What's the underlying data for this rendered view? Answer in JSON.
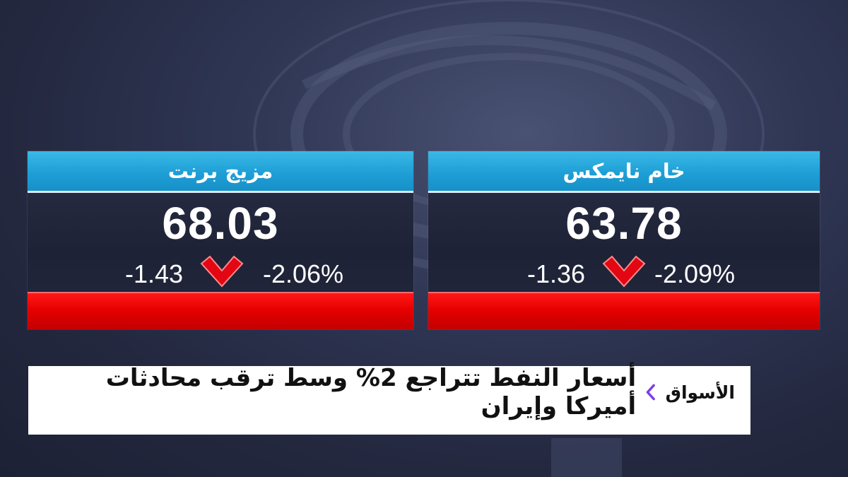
{
  "colors": {
    "background": "#23283f",
    "header_blue": "#1e9fd6",
    "down_red": "#e60000",
    "accent_purple": "#7b3fe4"
  },
  "cards": [
    {
      "title": "مزيج برنت",
      "price": "68.03",
      "change": "-1.43",
      "change_pct": "-2.06%",
      "direction_icon": "down-chevron-icon"
    },
    {
      "title": "خام نايمكس",
      "price": "63.78",
      "change": "-1.36",
      "change_pct": "-2.09%",
      "direction_icon": "down-chevron-icon"
    }
  ],
  "ticker": {
    "section": "الأسواق",
    "separator_icon": "chevron-left-icon",
    "headline": "أسعار النفط تتراجع 2% وسط ترقب محادثات أميركا وإيران"
  }
}
